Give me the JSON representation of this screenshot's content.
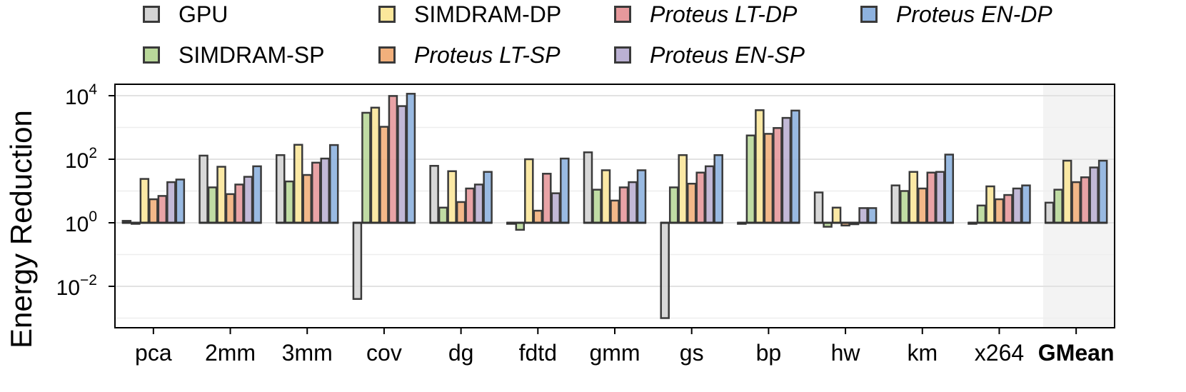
{
  "chart_data": {
    "type": "bar",
    "title": "",
    "xlabel": "",
    "ylabel": "Energy Reduction",
    "yscale": "log10",
    "ylim": [
      0.001,
      20000
    ],
    "yticks": [
      {
        "value": 0.01,
        "base": "10",
        "exp": "−2"
      },
      {
        "value": 1,
        "base": "10",
        "exp": "0"
      },
      {
        "value": 100,
        "base": "10",
        "exp": "2"
      },
      {
        "value": 10000,
        "base": "10",
        "exp": "4"
      }
    ],
    "baseline": 1,
    "categories": [
      "pca",
      "2mm",
      "3mm",
      "cov",
      "dg",
      "fdtd",
      "gmm",
      "gs",
      "bp",
      "hw",
      "km",
      "x264",
      "GMean"
    ],
    "highlight_category": "GMean",
    "series": [
      {
        "name": "GPU",
        "color": "#d4d4d4",
        "italic": false,
        "values": [
          1.15,
          130,
          135,
          0.004,
          62,
          1.0,
          165,
          0.001,
          1.0,
          9,
          15,
          1.0,
          4.3
        ]
      },
      {
        "name": "SIMDRAM-SP",
        "color": "#b9d89a",
        "italic": false,
        "values": [
          1.0,
          13,
          20,
          2900,
          3,
          0.6,
          11,
          13,
          560,
          0.75,
          10,
          3.5,
          11
        ]
      },
      {
        "name": "SIMDRAM-DP",
        "color": "#fbe79b",
        "italic": false,
        "values": [
          24,
          58,
          285,
          4200,
          42,
          100,
          45,
          135,
          3500,
          3,
          40,
          14,
          90
        ]
      },
      {
        "name": "Proteus LT-SP",
        "color": "#f2b07c",
        "italic": true,
        "values": [
          5.5,
          8,
          32,
          1050,
          4.5,
          2.4,
          5,
          17,
          630,
          0.82,
          12,
          5.5,
          19
        ]
      },
      {
        "name": "Proteus LT-DP",
        "color": "#e7999c",
        "italic": true,
        "values": [
          7,
          16,
          78,
          9800,
          12,
          35,
          13,
          38,
          960,
          0.9,
          38,
          7.5,
          27
        ]
      },
      {
        "name": "Proteus EN-SP",
        "color": "#bbb1d3",
        "italic": true,
        "values": [
          19,
          28,
          105,
          4700,
          16,
          8.5,
          19,
          60,
          2000,
          2.9,
          40,
          12,
          55
        ]
      },
      {
        "name": "Proteus EN-DP",
        "color": "#8eb2df",
        "italic": true,
        "values": [
          23,
          60,
          280,
          11500,
          40,
          105,
          45,
          135,
          3400,
          2.9,
          140,
          15,
          90
        ]
      }
    ]
  }
}
